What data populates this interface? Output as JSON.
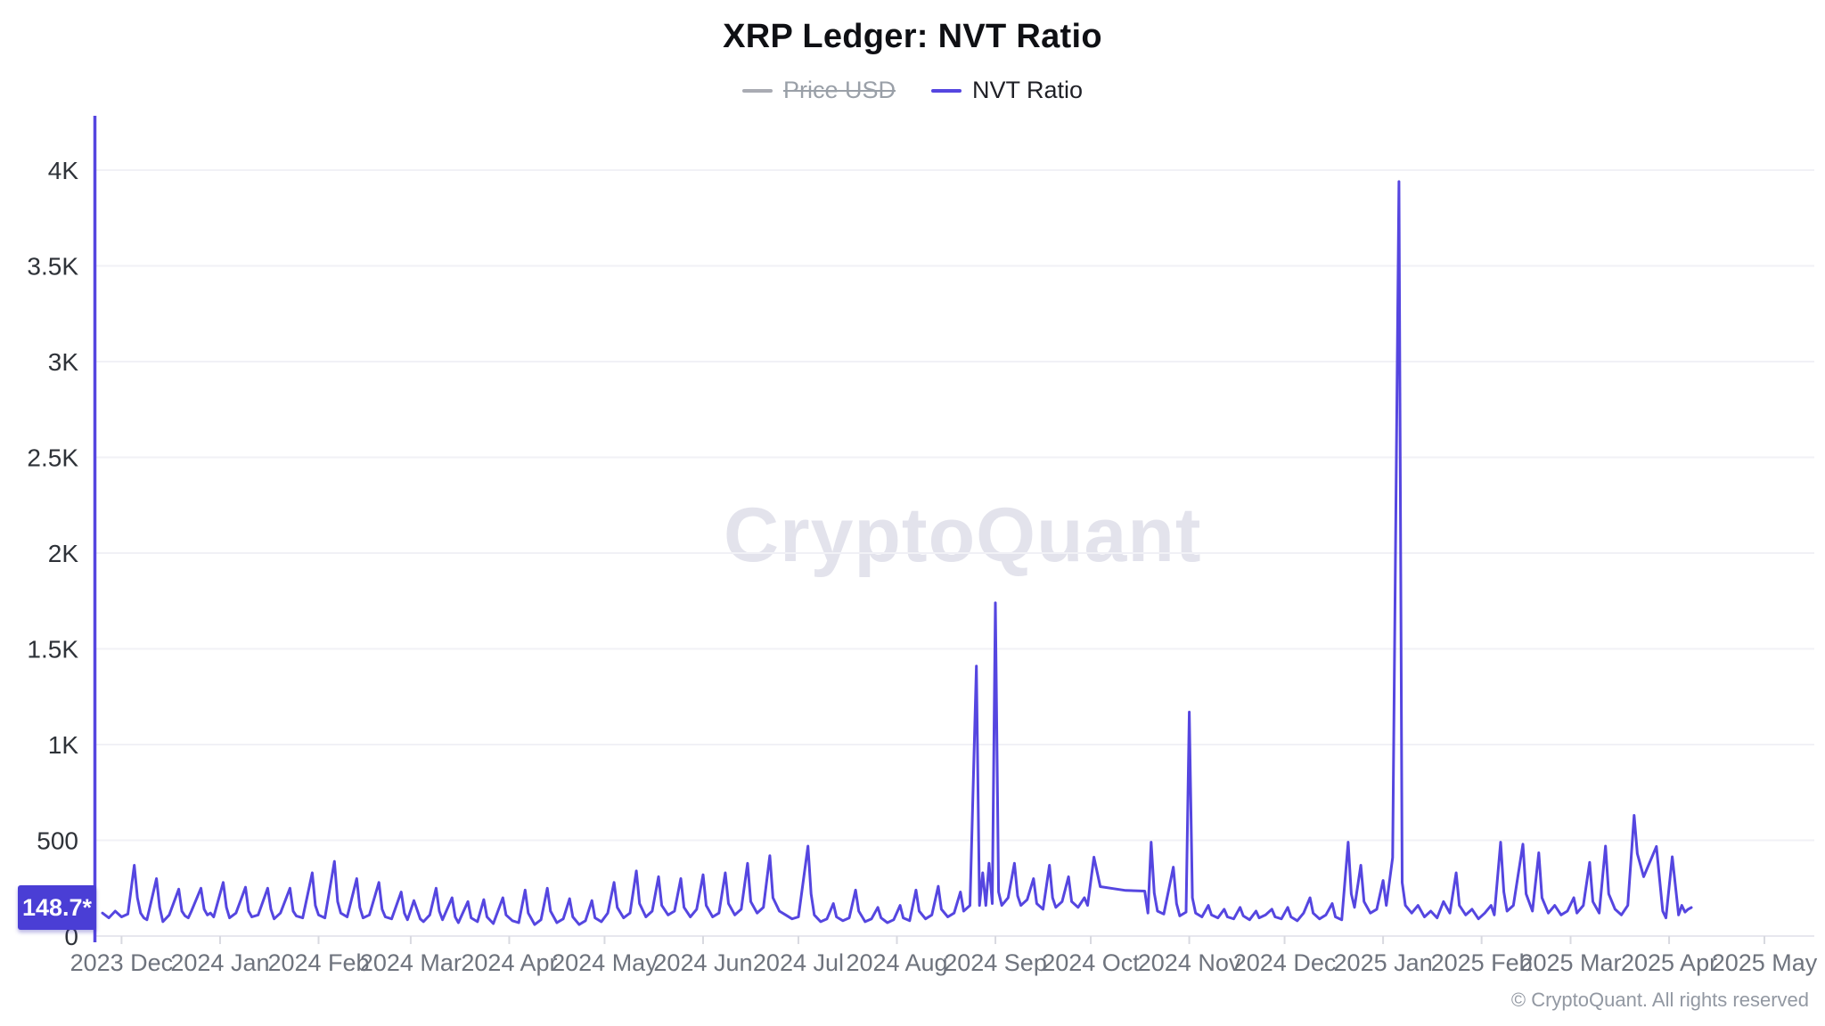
{
  "title": "XRP Ledger: NVT Ratio",
  "legend": {
    "items": [
      {
        "label": "Price USD",
        "color": "#a9abb3",
        "disabled": true
      },
      {
        "label": "NVT Ratio",
        "color": "#5546e0",
        "disabled": false
      }
    ]
  },
  "badge": {
    "text": "148.7*",
    "value": 148.7,
    "bg_color": "#4a3ed5"
  },
  "watermark": "CryptoQuant",
  "footer": "© CryptoQuant. All rights reserved",
  "colors": {
    "line": "#5546e0",
    "axis": "#5546e0",
    "grid": "#f1f1f6",
    "baseline": "#e7e7ee",
    "y_label": "#2e3238",
    "x_label": "#6e737d"
  },
  "chart_data": {
    "type": "line",
    "title": "XRP Ledger: NVT Ratio",
    "ylabel": "",
    "xlabel": "",
    "ylim": [
      0,
      4000
    ],
    "grid": "horizontal-only",
    "legend_position": "top-center",
    "y_ticks": [
      {
        "label": "0",
        "value": 0
      },
      {
        "label": "500",
        "value": 500
      },
      {
        "label": "1K",
        "value": 1000
      },
      {
        "label": "1.5K",
        "value": 1500
      },
      {
        "label": "2K",
        "value": 2000
      },
      {
        "label": "2.5K",
        "value": 2500
      },
      {
        "label": "3K",
        "value": 3000
      },
      {
        "label": "3.5K",
        "value": 3500
      },
      {
        "label": "4K",
        "value": 4000
      }
    ],
    "x_start_date": "2023-11-25",
    "x_ticks": [
      {
        "label": "2023 Dec",
        "day": 6
      },
      {
        "label": "2024 Jan",
        "day": 37
      },
      {
        "label": "2024 Feb",
        "day": 68
      },
      {
        "label": "2024 Mar",
        "day": 97
      },
      {
        "label": "2024 Apr",
        "day": 128
      },
      {
        "label": "2024 May",
        "day": 158
      },
      {
        "label": "2024 Jun",
        "day": 189
      },
      {
        "label": "2024 Jul",
        "day": 219
      },
      {
        "label": "2024 Aug",
        "day": 250
      },
      {
        "label": "2024 Sep",
        "day": 281
      },
      {
        "label": "2024 Oct",
        "day": 311
      },
      {
        "label": "2024 Nov",
        "day": 342
      },
      {
        "label": "2024 Dec",
        "day": 372
      },
      {
        "label": "2025 Jan",
        "day": 403
      },
      {
        "label": "2025 Feb",
        "day": 434
      },
      {
        "label": "2025 Mar",
        "day": 462
      },
      {
        "label": "2025 Apr",
        "day": 493
      },
      {
        "label": "2025 May",
        "day": 523
      }
    ],
    "series": [
      {
        "name": "Price USD",
        "visible": false,
        "points": []
      },
      {
        "name": "NVT Ratio",
        "visible": true,
        "color": "#5546e0",
        "last_value": 148.7,
        "points": [
          [
            0,
            120
          ],
          [
            2,
            95
          ],
          [
            4,
            130
          ],
          [
            6,
            100
          ],
          [
            8,
            115
          ],
          [
            10,
            370
          ],
          [
            11,
            200
          ],
          [
            12,
            120
          ],
          [
            13,
            95
          ],
          [
            14,
            85
          ],
          [
            17,
            300
          ],
          [
            18,
            150
          ],
          [
            19,
            75
          ],
          [
            21,
            110
          ],
          [
            24,
            245
          ],
          [
            25,
            130
          ],
          [
            26,
            105
          ],
          [
            27,
            95
          ],
          [
            28,
            130
          ],
          [
            31,
            250
          ],
          [
            32,
            140
          ],
          [
            33,
            110
          ],
          [
            34,
            120
          ],
          [
            35,
            100
          ],
          [
            38,
            280
          ],
          [
            39,
            150
          ],
          [
            40,
            95
          ],
          [
            42,
            120
          ],
          [
            45,
            255
          ],
          [
            46,
            130
          ],
          [
            47,
            100
          ],
          [
            49,
            110
          ],
          [
            52,
            250
          ],
          [
            53,
            140
          ],
          [
            54,
            90
          ],
          [
            56,
            120
          ],
          [
            59,
            250
          ],
          [
            60,
            130
          ],
          [
            61,
            105
          ],
          [
            63,
            95
          ],
          [
            66,
            330
          ],
          [
            67,
            160
          ],
          [
            68,
            110
          ],
          [
            70,
            95
          ],
          [
            73,
            390
          ],
          [
            74,
            180
          ],
          [
            75,
            120
          ],
          [
            77,
            100
          ],
          [
            80,
            300
          ],
          [
            81,
            150
          ],
          [
            82,
            95
          ],
          [
            84,
            110
          ],
          [
            87,
            280
          ],
          [
            88,
            140
          ],
          [
            89,
            100
          ],
          [
            91,
            90
          ],
          [
            94,
            230
          ],
          [
            95,
            120
          ],
          [
            96,
            85
          ],
          [
            98,
            185
          ],
          [
            100,
            90
          ],
          [
            101,
            75
          ],
          [
            103,
            110
          ],
          [
            105,
            250
          ],
          [
            106,
            130
          ],
          [
            107,
            85
          ],
          [
            110,
            200
          ],
          [
            111,
            100
          ],
          [
            112,
            70
          ],
          [
            115,
            180
          ],
          [
            116,
            95
          ],
          [
            118,
            75
          ],
          [
            120,
            190
          ],
          [
            121,
            100
          ],
          [
            123,
            65
          ],
          [
            126,
            200
          ],
          [
            127,
            110
          ],
          [
            129,
            80
          ],
          [
            131,
            70
          ],
          [
            133,
            240
          ],
          [
            134,
            120
          ],
          [
            136,
            60
          ],
          [
            138,
            85
          ],
          [
            140,
            250
          ],
          [
            141,
            130
          ],
          [
            143,
            70
          ],
          [
            145,
            90
          ],
          [
            147,
            195
          ],
          [
            148,
            100
          ],
          [
            150,
            60
          ],
          [
            152,
            80
          ],
          [
            154,
            185
          ],
          [
            155,
            95
          ],
          [
            157,
            75
          ],
          [
            159,
            120
          ],
          [
            161,
            280
          ],
          [
            162,
            150
          ],
          [
            164,
            95
          ],
          [
            166,
            120
          ],
          [
            168,
            340
          ],
          [
            169,
            170
          ],
          [
            171,
            100
          ],
          [
            173,
            130
          ],
          [
            175,
            310
          ],
          [
            176,
            160
          ],
          [
            178,
            110
          ],
          [
            180,
            130
          ],
          [
            182,
            300
          ],
          [
            183,
            150
          ],
          [
            185,
            100
          ],
          [
            187,
            140
          ],
          [
            189,
            320
          ],
          [
            190,
            160
          ],
          [
            192,
            100
          ],
          [
            194,
            120
          ],
          [
            196,
            330
          ],
          [
            197,
            170
          ],
          [
            199,
            110
          ],
          [
            201,
            140
          ],
          [
            203,
            380
          ],
          [
            204,
            180
          ],
          [
            206,
            120
          ],
          [
            208,
            150
          ],
          [
            210,
            420
          ],
          [
            211,
            200
          ],
          [
            213,
            130
          ],
          [
            215,
            110
          ],
          [
            217,
            90
          ],
          [
            219,
            100
          ],
          [
            222,
            470
          ],
          [
            223,
            220
          ],
          [
            224,
            110
          ],
          [
            226,
            75
          ],
          [
            228,
            90
          ],
          [
            230,
            170
          ],
          [
            231,
            100
          ],
          [
            233,
            80
          ],
          [
            235,
            95
          ],
          [
            237,
            240
          ],
          [
            238,
            130
          ],
          [
            240,
            75
          ],
          [
            242,
            90
          ],
          [
            244,
            150
          ],
          [
            245,
            95
          ],
          [
            247,
            70
          ],
          [
            249,
            85
          ],
          [
            251,
            160
          ],
          [
            252,
            95
          ],
          [
            254,
            80
          ],
          [
            256,
            240
          ],
          [
            257,
            130
          ],
          [
            259,
            90
          ],
          [
            261,
            110
          ],
          [
            263,
            260
          ],
          [
            264,
            140
          ],
          [
            266,
            100
          ],
          [
            268,
            120
          ],
          [
            270,
            230
          ],
          [
            271,
            130
          ],
          [
            273,
            160
          ],
          [
            275,
            1410
          ],
          [
            276,
            160
          ],
          [
            277,
            330
          ],
          [
            278,
            160
          ],
          [
            279,
            380
          ],
          [
            280,
            170
          ],
          [
            281,
            1740
          ],
          [
            282,
            230
          ],
          [
            283,
            160
          ],
          [
            285,
            200
          ],
          [
            287,
            380
          ],
          [
            288,
            210
          ],
          [
            289,
            160
          ],
          [
            291,
            190
          ],
          [
            293,
            300
          ],
          [
            294,
            170
          ],
          [
            296,
            140
          ],
          [
            298,
            370
          ],
          [
            299,
            200
          ],
          [
            300,
            150
          ],
          [
            302,
            180
          ],
          [
            304,
            310
          ],
          [
            305,
            180
          ],
          [
            307,
            150
          ],
          [
            309,
            200
          ],
          [
            310,
            160
          ],
          [
            312,
            412
          ],
          [
            314,
            258
          ],
          [
            318,
            248
          ],
          [
            322,
            238
          ],
          [
            328,
            235
          ],
          [
            329,
            120
          ],
          [
            330,
            490
          ],
          [
            331,
            225
          ],
          [
            332,
            130
          ],
          [
            334,
            115
          ],
          [
            337,
            360
          ],
          [
            338,
            170
          ],
          [
            339,
            105
          ],
          [
            341,
            125
          ],
          [
            342,
            1170
          ],
          [
            343,
            200
          ],
          [
            344,
            120
          ],
          [
            346,
            100
          ],
          [
            348,
            160
          ],
          [
            349,
            110
          ],
          [
            351,
            95
          ],
          [
            353,
            140
          ],
          [
            354,
            100
          ],
          [
            356,
            90
          ],
          [
            358,
            150
          ],
          [
            359,
            105
          ],
          [
            361,
            85
          ],
          [
            363,
            130
          ],
          [
            364,
            95
          ],
          [
            366,
            110
          ],
          [
            368,
            140
          ],
          [
            369,
            100
          ],
          [
            371,
            90
          ],
          [
            373,
            150
          ],
          [
            374,
            100
          ],
          [
            376,
            80
          ],
          [
            378,
            120
          ],
          [
            380,
            200
          ],
          [
            381,
            120
          ],
          [
            383,
            90
          ],
          [
            385,
            110
          ],
          [
            387,
            170
          ],
          [
            388,
            100
          ],
          [
            390,
            85
          ],
          [
            392,
            490
          ],
          [
            393,
            220
          ],
          [
            394,
            150
          ],
          [
            396,
            370
          ],
          [
            397,
            180
          ],
          [
            399,
            120
          ],
          [
            401,
            140
          ],
          [
            403,
            290
          ],
          [
            404,
            160
          ],
          [
            406,
            410
          ],
          [
            408,
            3940
          ],
          [
            409,
            280
          ],
          [
            410,
            160
          ],
          [
            412,
            120
          ],
          [
            414,
            160
          ],
          [
            416,
            100
          ],
          [
            418,
            130
          ],
          [
            420,
            95
          ],
          [
            422,
            180
          ],
          [
            424,
            120
          ],
          [
            426,
            330
          ],
          [
            427,
            160
          ],
          [
            429,
            110
          ],
          [
            431,
            140
          ],
          [
            433,
            90
          ],
          [
            435,
            120
          ],
          [
            437,
            160
          ],
          [
            438,
            110
          ],
          [
            440,
            490
          ],
          [
            441,
            230
          ],
          [
            442,
            130
          ],
          [
            444,
            160
          ],
          [
            447,
            480
          ],
          [
            448,
            220
          ],
          [
            450,
            130
          ],
          [
            452,
            435
          ],
          [
            453,
            200
          ],
          [
            455,
            120
          ],
          [
            457,
            160
          ],
          [
            459,
            110
          ],
          [
            461,
            130
          ],
          [
            463,
            200
          ],
          [
            464,
            120
          ],
          [
            466,
            160
          ],
          [
            468,
            385
          ],
          [
            469,
            180
          ],
          [
            471,
            120
          ],
          [
            473,
            470
          ],
          [
            474,
            220
          ],
          [
            476,
            140
          ],
          [
            478,
            110
          ],
          [
            480,
            160
          ],
          [
            482,
            630
          ],
          [
            483,
            430
          ],
          [
            485,
            310
          ],
          [
            489,
            468
          ],
          [
            491,
            130
          ],
          [
            492,
            95
          ],
          [
            494,
            414
          ],
          [
            496,
            110
          ],
          [
            497,
            160
          ],
          [
            498,
            125
          ],
          [
            499,
            140
          ],
          [
            500,
            148.7
          ]
        ]
      }
    ]
  }
}
